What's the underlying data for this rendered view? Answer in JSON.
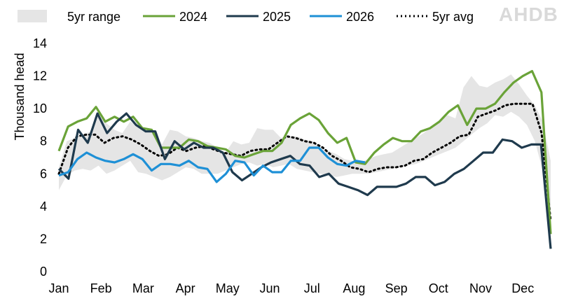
{
  "brand": "AHDB",
  "chart_data": {
    "type": "line",
    "ylabel": "Thousand head",
    "xlabel": "",
    "ylim": [
      0,
      14
    ],
    "y_ticks": [
      0,
      2,
      4,
      6,
      8,
      10,
      12,
      14
    ],
    "x_ticks": [
      "Jan",
      "Feb",
      "Mar",
      "Apr",
      "May",
      "Jun",
      "Jul",
      "Aug",
      "Sep",
      "Oct",
      "Nov",
      "Dec"
    ],
    "x_unit": "week",
    "grid": false,
    "legend_position": "top",
    "legend": [
      "5yr range",
      "2024",
      "2025",
      "2026",
      "5yr avg"
    ],
    "colors": {
      "range": "#e5e5e5",
      "2024": "#6aa338",
      "2025": "#1f3a4d",
      "2026": "#1e90d6",
      "avg": "#000000"
    },
    "range_upper": [
      6.4,
      8.0,
      8.2,
      8.4,
      8.6,
      9.6,
      9.1,
      8.7,
      8.5,
      9.2,
      8.9,
      8.6,
      8.6,
      7.8,
      8.7,
      8.6,
      8.3,
      8.2,
      8.0,
      7.9,
      7.6,
      7.3,
      8.0,
      7.8,
      7.9,
      8.8,
      8.7,
      8.7,
      8.2,
      8.3,
      8.3,
      8.1,
      8.0,
      7.6,
      7.4,
      7.2,
      6.9,
      6.8,
      6.7,
      6.9,
      7.1,
      7.2,
      7.3,
      7.6,
      7.9,
      8.2,
      8.5,
      8.9,
      9.3,
      9.6,
      9.4,
      11.3,
      12.0,
      11.4,
      11.3,
      11.6,
      11.8,
      12.1,
      11.5,
      10.8,
      10.2,
      9.2,
      6.8
    ],
    "range_lower": [
      5.0,
      5.9,
      6.2,
      6.3,
      6.2,
      6.5,
      6.0,
      6.2,
      6.5,
      6.8,
      6.1,
      6.0,
      5.8,
      5.6,
      5.8,
      6.1,
      6.4,
      6.3,
      6.0,
      6.0,
      6.0,
      6.2,
      6.4,
      6.6,
      6.7,
      6.5,
      6.6,
      6.4,
      6.5,
      6.6,
      6.3,
      6.2,
      6.1,
      6.0,
      5.9,
      5.8,
      5.9,
      6.0,
      6.0,
      6.0,
      6.1,
      6.2,
      6.3,
      6.4,
      6.5,
      6.6,
      6.8,
      7.0,
      7.2,
      7.4,
      7.6,
      8.0,
      8.4,
      8.8,
      9.1,
      9.6,
      9.5,
      9.8,
      9.5,
      9.0,
      8.0,
      6.2,
      2.4
    ],
    "series": [
      {
        "name": "2024",
        "values": [
          7.4,
          8.9,
          9.2,
          9.4,
          10.1,
          9.2,
          9.5,
          9.2,
          9.5,
          8.8,
          8.7,
          7.6,
          7.6,
          7.6,
          8.1,
          8.0,
          7.7,
          7.6,
          7.5,
          7.1,
          7.0,
          7.2,
          7.4,
          7.4,
          7.9,
          9.0,
          9.4,
          9.7,
          9.3,
          8.5,
          7.9,
          8.2,
          6.7,
          6.6,
          7.3,
          7.8,
          8.2,
          8.0,
          8.0,
          8.6,
          8.8,
          9.2,
          9.8,
          10.2,
          9.0,
          10.0,
          10.0,
          10.3,
          11.0,
          11.6,
          12.0,
          12.3,
          11.0,
          2.3
        ]
      },
      {
        "name": "2025",
        "values": [
          6.3,
          5.7,
          8.7,
          7.9,
          9.7,
          8.5,
          9.2,
          9.7,
          9.0,
          8.6,
          8.6,
          6.9,
          8.0,
          7.5,
          7.9,
          7.6,
          7.6,
          7.3,
          6.1,
          5.6,
          6.0,
          6.4,
          6.7,
          6.9,
          7.1,
          6.6,
          6.5,
          5.8,
          6.0,
          5.4,
          5.2,
          5.0,
          4.7,
          5.2,
          5.2,
          5.2,
          5.4,
          5.8,
          5.8,
          5.3,
          5.5,
          6.0,
          6.3,
          6.8,
          7.3,
          7.3,
          8.1,
          8.0,
          7.6,
          7.8,
          7.8,
          1.4
        ]
      },
      {
        "name": "2026",
        "values": [
          5.9,
          6.1,
          6.9,
          7.3,
          7.0,
          6.8,
          6.7,
          6.9,
          7.2,
          6.9,
          6.2,
          6.6,
          6.6,
          6.5,
          6.8,
          6.4,
          6.3,
          5.5,
          6.0,
          6.8,
          6.7,
          5.9,
          6.5,
          6.1,
          6.1,
          6.8,
          6.8,
          7.6,
          7.6,
          7.0,
          6.6,
          6.5,
          6.8,
          6.7
        ]
      },
      {
        "name": "5yr avg",
        "values": [
          6.0,
          7.6,
          8.3,
          8.4,
          8.4,
          7.9,
          8.2,
          8.3,
          8.1,
          7.8,
          7.4,
          7.1,
          7.2,
          7.6,
          7.4,
          7.6,
          7.7,
          7.5,
          7.3,
          7.2,
          7.1,
          7.4,
          7.5,
          7.5,
          7.9,
          8.3,
          8.2,
          8.0,
          7.9,
          7.6,
          7.1,
          6.8,
          6.4,
          6.3,
          6.1,
          6.3,
          6.4,
          6.4,
          6.5,
          6.8,
          6.9,
          7.3,
          7.6,
          7.9,
          8.3,
          8.4,
          9.5,
          9.7,
          9.9,
          10.2,
          10.3,
          10.3,
          10.3,
          8.5,
          3.1
        ]
      }
    ]
  }
}
